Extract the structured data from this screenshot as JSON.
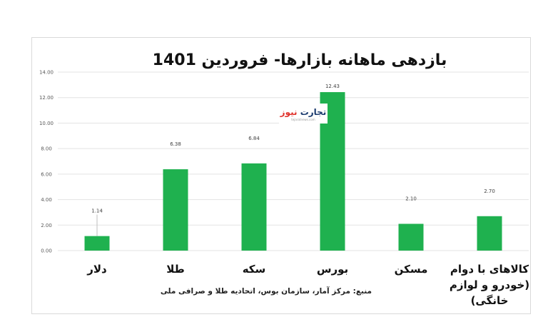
{
  "chart_data": {
    "type": "bar",
    "title": "بازدهی ماهانه بازارها- فروردین 1401",
    "categories": [
      "دلار",
      "طلا",
      "سکه",
      "بورس",
      "مسکن",
      "کالاهای با دوام (خودرو و لوازم خانگی)"
    ],
    "category_lines": [
      [
        "دلار"
      ],
      [
        "طلا"
      ],
      [
        "سکه"
      ],
      [
        "بورس"
      ],
      [
        "مسکن"
      ],
      [
        "کالاهای با دوام",
        "(خودرو و لوازم",
        "خانگی)"
      ]
    ],
    "values": [
      1.14,
      6.38,
      6.84,
      12.43,
      2.1,
      2.7
    ],
    "value_labels": [
      "1.14",
      "6.38",
      "6.84",
      "12.43",
      "2.10",
      "2.70"
    ],
    "ylim": [
      0,
      14
    ],
    "yticks": [
      "0.00",
      "2.00",
      "4.00",
      "6.00",
      "8.00",
      "10.00",
      "12.00",
      "14.00"
    ],
    "grid": true,
    "bar_color": "#1fb14f",
    "source": "منبع: مرکز آمار، سازمان بوس، اتحادیه طلا و صرافی ملی"
  },
  "watermark": {
    "main": "تجارت",
    "accent": "نیوز",
    "sub": "tejaratnews.com",
    "main_color": "#1a3a6e",
    "accent_color": "#e0312b"
  }
}
